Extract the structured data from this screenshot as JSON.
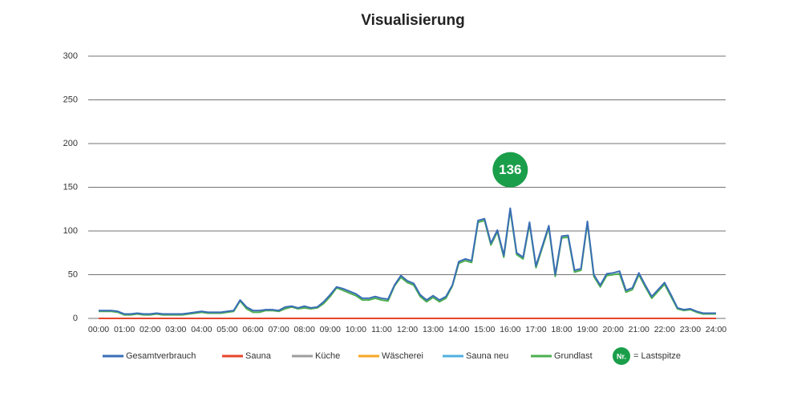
{
  "chart_data": {
    "type": "line",
    "title": "Visualisierung",
    "x": [
      0,
      0.25,
      0.5,
      0.75,
      1,
      1.25,
      1.5,
      1.75,
      2,
      2.25,
      2.5,
      2.75,
      3,
      3.25,
      3.5,
      3.75,
      4,
      4.25,
      4.5,
      4.75,
      5,
      5.25,
      5.5,
      5.75,
      6,
      6.25,
      6.5,
      6.75,
      7,
      7.25,
      7.5,
      7.75,
      8,
      8.25,
      8.5,
      8.75,
      9,
      9.25,
      9.5,
      9.75,
      10,
      10.25,
      10.5,
      10.75,
      11,
      11.25,
      11.5,
      11.75,
      12,
      12.25,
      12.5,
      12.75,
      13,
      13.25,
      13.5,
      13.75,
      14,
      14.25,
      14.5,
      14.75,
      15,
      15.25,
      15.5,
      15.75,
      16,
      16.25,
      16.5,
      16.75,
      17,
      17.25,
      17.5,
      17.75,
      18,
      18.25,
      18.5,
      18.75,
      19,
      19.25,
      19.5,
      19.75,
      20,
      20.25,
      20.5,
      20.75,
      21,
      21.25,
      21.5,
      21.75,
      22,
      22.25,
      22.5,
      22.75,
      23,
      23.25,
      23.5,
      23.75,
      24
    ],
    "xlim": [
      0,
      24
    ],
    "xticks": [
      {
        "value": 0,
        "label": "00:00"
      },
      {
        "value": 1,
        "label": "01:00"
      },
      {
        "value": 2,
        "label": "02:00"
      },
      {
        "value": 3,
        "label": "03:00"
      },
      {
        "value": 4,
        "label": "04:00"
      },
      {
        "value": 5,
        "label": "05:00"
      },
      {
        "value": 6,
        "label": "06:00"
      },
      {
        "value": 7,
        "label": "07:00"
      },
      {
        "value": 8,
        "label": "08:00"
      },
      {
        "value": 9,
        "label": "09:00"
      },
      {
        "value": 10,
        "label": "10:00"
      },
      {
        "value": 11,
        "label": "11:00"
      },
      {
        "value": 12,
        "label": "12:00"
      },
      {
        "value": 13,
        "label": "13:00"
      },
      {
        "value": 14,
        "label": "14:00"
      },
      {
        "value": 15,
        "label": "15:00"
      },
      {
        "value": 16,
        "label": "16:00"
      },
      {
        "value": 17,
        "label": "17:00"
      },
      {
        "value": 18,
        "label": "18:00"
      },
      {
        "value": 19,
        "label": "19:00"
      },
      {
        "value": 20,
        "label": "20:00"
      },
      {
        "value": 21,
        "label": "21:00"
      },
      {
        "value": 22,
        "label": "22:00"
      },
      {
        "value": 23,
        "label": "23:00"
      },
      {
        "value": 24,
        "label": "24:00"
      }
    ],
    "ylim": [
      0,
      300
    ],
    "yticks": [
      0,
      50,
      100,
      150,
      200,
      250,
      300
    ],
    "grid": true,
    "series": [
      {
        "name": "Gesamtverbrauch",
        "color": "#3a6eb5",
        "values": [
          9,
          9,
          9,
          8,
          5,
          5,
          6,
          5,
          5,
          6,
          5,
          5,
          5,
          5,
          6,
          7,
          8,
          7,
          7,
          7,
          8,
          9,
          21,
          13,
          9,
          9,
          10,
          10,
          9,
          13,
          14,
          12,
          14,
          12,
          13,
          19,
          27,
          36,
          34,
          31,
          28,
          23,
          23,
          25,
          23,
          22,
          38,
          49,
          43,
          40,
          27,
          21,
          26,
          21,
          25,
          38,
          65,
          68,
          66,
          112,
          114,
          86,
          101,
          72,
          126,
          75,
          70,
          110,
          60,
          83,
          106,
          50,
          94,
          95,
          55,
          57,
          111,
          50,
          38,
          51,
          52,
          54,
          32,
          35,
          52,
          38,
          25,
          33,
          41,
          27,
          12,
          10,
          11,
          8,
          6,
          6,
          6
        ]
      },
      {
        "name": "Sauna",
        "color": "#e8452c",
        "values": [
          0,
          0,
          0,
          0,
          0,
          0,
          0,
          0,
          0,
          0,
          0,
          0,
          0,
          0,
          0,
          0,
          0,
          0,
          0,
          0,
          0,
          0,
          0,
          0,
          0,
          0,
          0,
          0,
          0,
          0,
          0,
          0,
          0,
          0,
          0,
          0,
          0,
          0,
          0,
          0,
          0,
          0,
          0,
          0,
          0,
          0,
          0,
          0,
          0,
          0,
          0,
          0,
          0,
          0,
          0,
          0,
          0,
          0,
          0,
          0,
          0,
          0,
          0,
          0,
          0,
          0,
          0,
          0,
          0,
          0,
          0,
          0,
          0,
          0,
          0,
          0,
          0,
          0,
          0,
          0,
          0,
          0,
          0,
          0,
          0,
          0,
          0,
          0,
          0,
          0,
          0,
          0,
          0,
          0,
          0,
          0,
          0
        ]
      },
      {
        "name": "Küche",
        "color": "#9e9e9e",
        "values": [
          0,
          0,
          0,
          0,
          0,
          0,
          0,
          0,
          0,
          0,
          0,
          0,
          0,
          0,
          0,
          0,
          0,
          0,
          0,
          0,
          0,
          0,
          0,
          0,
          0,
          0,
          0,
          0,
          0,
          0,
          0,
          0,
          0,
          0,
          0,
          0,
          0,
          0,
          0,
          0,
          0,
          0,
          0,
          0,
          0,
          0,
          0,
          0,
          0,
          0,
          0,
          0,
          0,
          0,
          0,
          0,
          0,
          0,
          0,
          0,
          0,
          0,
          0,
          0,
          0,
          0,
          0,
          0,
          0,
          0,
          0,
          0,
          0,
          0,
          0,
          0,
          0,
          0,
          0,
          0,
          0,
          0,
          0,
          0,
          0,
          0,
          0,
          0,
          0,
          0,
          0,
          0,
          0,
          0,
          0,
          0,
          0
        ]
      },
      {
        "name": "Wäscherei",
        "color": "#f5a623",
        "values": [
          0,
          0,
          0,
          0,
          0,
          0,
          0,
          0,
          0,
          0,
          0,
          0,
          0,
          0,
          0,
          0,
          0,
          0,
          0,
          0,
          0,
          0,
          0,
          0,
          0,
          0,
          0,
          0,
          0,
          0,
          0,
          0,
          0,
          0,
          0,
          0,
          0,
          0,
          0,
          0,
          0,
          0,
          0,
          0,
          0,
          0,
          0,
          0,
          0,
          0,
          0,
          0,
          0,
          0,
          0,
          0,
          0,
          0,
          0,
          0,
          0,
          0,
          0,
          0,
          0,
          0,
          0,
          0,
          0,
          0,
          0,
          0,
          0,
          0,
          0,
          0,
          0,
          0,
          0,
          0,
          0,
          0,
          0,
          0,
          0,
          0,
          0,
          0,
          0,
          0,
          0,
          0,
          0,
          0,
          0,
          0,
          0
        ]
      },
      {
        "name": "Sauna neu",
        "color": "#4fb0e0",
        "values": [
          0,
          0,
          0,
          0,
          0,
          0,
          0,
          0,
          0,
          0,
          0,
          0,
          0,
          0,
          0,
          0,
          0,
          0,
          0,
          0,
          0,
          0,
          0,
          0,
          0,
          0,
          0,
          0,
          0,
          0,
          0,
          0,
          0,
          0,
          0,
          0,
          0,
          0,
          0,
          0,
          0,
          0,
          0,
          0,
          0,
          0,
          0,
          0,
          0,
          0,
          0,
          0,
          0,
          0,
          0,
          0,
          0,
          0,
          0,
          0,
          0,
          0,
          0,
          0,
          0,
          0,
          0,
          0,
          0,
          0,
          0,
          0,
          0,
          0,
          0,
          0,
          0,
          0,
          0,
          0,
          0,
          0,
          0,
          0,
          0,
          0,
          0,
          0,
          0,
          0,
          0,
          0,
          0,
          0,
          0,
          0,
          0
        ]
      },
      {
        "name": "Grundlast",
        "color": "#4caf50",
        "values": [
          8,
          8,
          8,
          7,
          4,
          4,
          5,
          4,
          4,
          5,
          4,
          4,
          4,
          4,
          5,
          6,
          7,
          6,
          6,
          6,
          7,
          8,
          20,
          11,
          7,
          7,
          9,
          9,
          8,
          11,
          13,
          11,
          12,
          11,
          12,
          17,
          25,
          35,
          32,
          29,
          26,
          21,
          21,
          23,
          21,
          20,
          37,
          47,
          41,
          38,
          25,
          19,
          24,
          19,
          23,
          37,
          63,
          66,
          64,
          110,
          112,
          84,
          99,
          70,
          124,
          73,
          68,
          108,
          58,
          81,
          104,
          48,
          92,
          93,
          53,
          55,
          109,
          48,
          36,
          49,
          50,
          51,
          30,
          33,
          50,
          36,
          23,
          31,
          39,
          25,
          11,
          9,
          10,
          7,
          5,
          5,
          5
        ]
      }
    ],
    "annotations": [
      {
        "text": "136",
        "x": 16
      }
    ],
    "peak_legend": {
      "badge": "Nr.",
      "text": "= Lastspitze"
    }
  }
}
